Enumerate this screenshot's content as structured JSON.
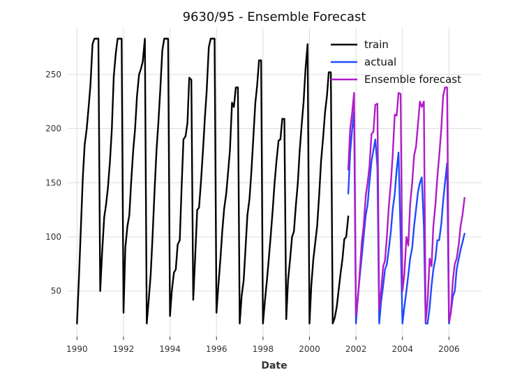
{
  "chart_data": {
    "type": "line",
    "title": "9630/95 - Ensemble Forecast",
    "xlabel": "Date",
    "ylabel": "",
    "xlim": [
      1989.6,
      2007.4
    ],
    "ylim": [
      8,
      293
    ],
    "x_ticks": [
      1990,
      1992,
      1994,
      1996,
      1998,
      2000,
      2002,
      2004,
      2006
    ],
    "x_tick_labels": [
      "1990",
      "1992",
      "1994",
      "1996",
      "1998",
      "2000",
      "2002",
      "2004",
      "2006"
    ],
    "y_ticks": [
      50,
      100,
      150,
      200,
      250
    ],
    "y_tick_labels": [
      "50",
      "100",
      "150",
      "200",
      "250"
    ],
    "grid": true,
    "legend_position": "top-right",
    "series": [
      {
        "name": "train",
        "color": "#000000",
        "x": [
          1990.0,
          1990.08,
          1990.17,
          1990.25,
          1990.33,
          1990.42,
          1990.5,
          1990.58,
          1990.67,
          1990.75,
          1990.83,
          1990.92,
          1991.0,
          1991.08,
          1991.17,
          1991.25,
          1991.33,
          1991.42,
          1991.5,
          1991.58,
          1991.67,
          1991.75,
          1991.83,
          1991.92,
          1992.0,
          1992.08,
          1992.17,
          1992.25,
          1992.33,
          1992.42,
          1992.5,
          1992.58,
          1992.67,
          1992.75,
          1992.83,
          1992.92,
          1993.0,
          1993.08,
          1993.17,
          1993.25,
          1993.33,
          1993.42,
          1993.5,
          1993.58,
          1993.67,
          1993.75,
          1993.83,
          1993.92,
          1994.0,
          1994.08,
          1994.17,
          1994.25,
          1994.33,
          1994.42,
          1994.5,
          1994.58,
          1994.67,
          1994.75,
          1994.83,
          1994.92,
          1995.0,
          1995.08,
          1995.17,
          1995.25,
          1995.33,
          1995.42,
          1995.5,
          1995.58,
          1995.67,
          1995.75,
          1995.83,
          1995.92,
          1996.0,
          1996.08,
          1996.17,
          1996.25,
          1996.33,
          1996.42,
          1996.5,
          1996.58,
          1996.67,
          1996.75,
          1996.83,
          1996.92,
          1997.0,
          1997.08,
          1997.17,
          1997.25,
          1997.33,
          1997.42,
          1997.5,
          1997.58,
          1997.67,
          1997.75,
          1997.83,
          1997.92,
          1998.0,
          1998.08,
          1998.17,
          1998.25,
          1998.33,
          1998.42,
          1998.5,
          1998.58,
          1998.67,
          1998.75,
          1998.83,
          1998.92,
          1999.0,
          1999.08,
          1999.17,
          1999.25,
          1999.33,
          1999.42,
          1999.5,
          1999.58,
          1999.67,
          1999.75,
          1999.83,
          1999.92,
          2000.0,
          2000.08,
          2000.17,
          2000.25,
          2000.33,
          2000.42,
          2000.5,
          2000.58,
          2000.67,
          2000.75,
          2000.83,
          2000.92,
          2001.0,
          2001.08,
          2001.17,
          2001.25,
          2001.33,
          2001.42,
          2001.5,
          2001.58,
          2001.67
        ],
        "y": [
          20,
          60,
          110,
          155,
          185,
          200,
          220,
          240,
          278,
          283,
          283,
          283,
          50,
          85,
          118,
          130,
          145,
          170,
          200,
          248,
          270,
          283,
          283,
          283,
          30,
          90,
          110,
          120,
          150,
          180,
          200,
          230,
          250,
          255,
          262,
          283,
          20,
          40,
          65,
          100,
          140,
          180,
          205,
          235,
          272,
          283,
          283,
          283,
          27,
          50,
          67,
          70,
          93,
          97,
          145,
          190,
          193,
          205,
          247,
          245,
          42,
          80,
          125,
          127,
          150,
          180,
          210,
          235,
          275,
          283,
          283,
          283,
          30,
          55,
          80,
          105,
          126,
          140,
          160,
          180,
          224,
          220,
          238,
          238,
          20,
          45,
          60,
          90,
          120,
          135,
          160,
          190,
          223,
          240,
          263,
          263,
          20,
          40,
          60,
          80,
          100,
          125,
          150,
          170,
          189,
          190,
          209,
          209,
          24,
          60,
          80,
          100,
          105,
          130,
          150,
          180,
          205,
          225,
          255,
          278,
          20,
          55,
          80,
          95,
          110,
          140,
          170,
          190,
          215,
          230,
          252,
          252,
          20,
          25,
          35,
          50,
          65,
          80,
          98,
          100,
          119
        ]
      },
      {
        "name": "actual",
        "color": "#1f4bff",
        "x": [
          2001.67,
          2001.75,
          2001.83,
          2001.92,
          2002.0,
          2002.08,
          2002.17,
          2002.25,
          2002.33,
          2002.42,
          2002.5,
          2002.58,
          2002.67,
          2002.75,
          2002.83,
          2002.92,
          2003.0,
          2003.08,
          2003.17,
          2003.25,
          2003.33,
          2003.42,
          2003.5,
          2003.58,
          2003.67,
          2003.75,
          2003.83,
          2003.92,
          2004.0,
          2004.08,
          2004.17,
          2004.25,
          2004.33,
          2004.42,
          2004.5,
          2004.58,
          2004.67,
          2004.75,
          2004.83,
          2004.92,
          2005.0,
          2005.08,
          2005.17,
          2005.25,
          2005.33,
          2005.42,
          2005.5,
          2005.58,
          2005.67,
          2005.75,
          2005.83,
          2005.92,
          2006.0,
          2006.08,
          2006.17,
          2006.25,
          2006.33,
          2006.42,
          2006.5,
          2006.58,
          2006.67
        ],
        "y": [
          140,
          178,
          198,
          216,
          20,
          45,
          65,
          82,
          100,
          120,
          130,
          150,
          170,
          180,
          190,
          165,
          20,
          40,
          55,
          70,
          75,
          90,
          105,
          125,
          140,
          162,
          178,
          100,
          20,
          35,
          50,
          65,
          80,
          90,
          110,
          125,
          142,
          150,
          155,
          110,
          20,
          20,
          35,
          55,
          70,
          80,
          97,
          97,
          112,
          133,
          150,
          168,
          20,
          30,
          45,
          50,
          70,
          80,
          88,
          95,
          103
        ]
      },
      {
        "name": "Ensemble forecast",
        "color": "#b01cc7",
        "x": [
          2001.67,
          2001.75,
          2001.83,
          2001.92,
          2002.0,
          2002.08,
          2002.17,
          2002.25,
          2002.33,
          2002.42,
          2002.5,
          2002.58,
          2002.67,
          2002.75,
          2002.83,
          2002.92,
          2003.0,
          2003.08,
          2003.17,
          2003.25,
          2003.33,
          2003.42,
          2003.5,
          2003.58,
          2003.67,
          2003.75,
          2003.83,
          2003.92,
          2004.0,
          2004.08,
          2004.17,
          2004.25,
          2004.33,
          2004.42,
          2004.5,
          2004.58,
          2004.67,
          2004.75,
          2004.83,
          2004.92,
          2005.0,
          2005.08,
          2005.17,
          2005.25,
          2005.33,
          2005.42,
          2005.5,
          2005.58,
          2005.67,
          2005.75,
          2005.83,
          2005.92,
          2006.0,
          2006.08,
          2006.17,
          2006.25,
          2006.33,
          2006.42,
          2006.5,
          2006.58,
          2006.67
        ],
        "y": [
          162,
          200,
          213,
          233,
          28,
          42,
          70,
          95,
          110,
          138,
          150,
          165,
          195,
          197,
          222,
          223,
          33,
          50,
          73,
          78,
          100,
          130,
          150,
          175,
          213,
          212,
          233,
          232,
          50,
          65,
          100,
          92,
          130,
          150,
          175,
          183,
          205,
          225,
          220,
          225,
          22,
          40,
          80,
          73,
          110,
          130,
          155,
          175,
          200,
          230,
          238,
          238,
          22,
          30,
          60,
          75,
          80,
          93,
          110,
          120,
          136
        ]
      }
    ]
  }
}
